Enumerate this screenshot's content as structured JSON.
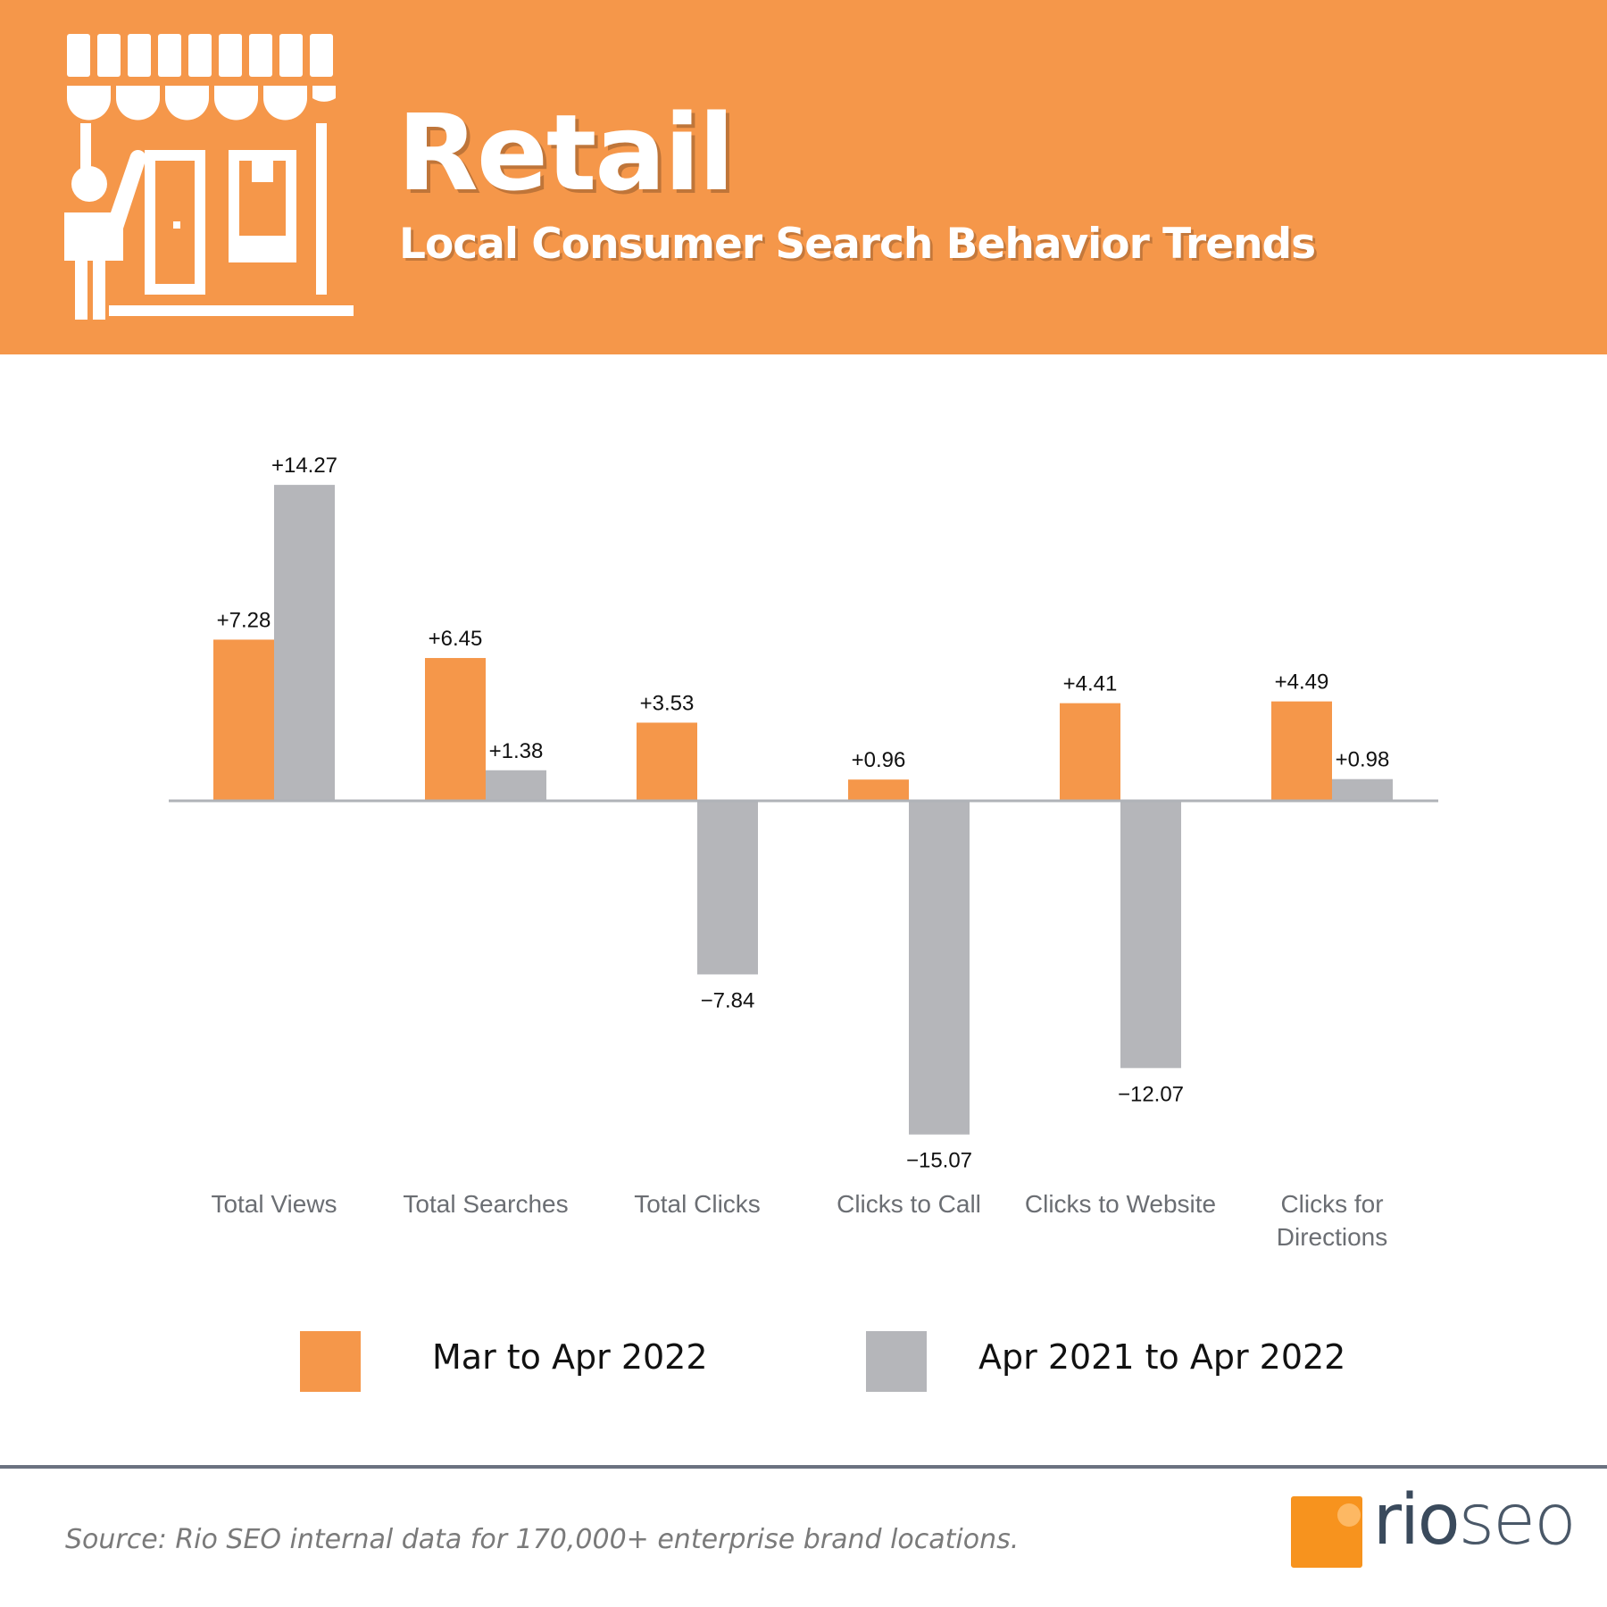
{
  "header": {
    "title": "Retail",
    "subtitle": "Local Consumer Search Behavior Trends",
    "icon": "storefront-icon"
  },
  "colors": {
    "header_bg": "#F5974A",
    "series_orange": "#F5974A",
    "series_gray": "#B5B6BA",
    "axis": "#B0B3B8",
    "category_text": "#6B6E73"
  },
  "chart_data": {
    "type": "bar",
    "categories": [
      "Total Views",
      "Total Searches",
      "Total Clicks",
      "Clicks to Call",
      "Clicks to Website",
      "Clicks for Directions"
    ],
    "category_lines": [
      [
        "Total Views"
      ],
      [
        "Total Searches"
      ],
      [
        "Total Clicks"
      ],
      [
        "Clicks to Call"
      ],
      [
        "Clicks to Website"
      ],
      [
        "Clicks for",
        "Directions"
      ]
    ],
    "series": [
      {
        "name": "Mar to Apr 2022",
        "values": [
          7.28,
          6.45,
          3.53,
          0.96,
          4.41,
          4.49
        ],
        "labels": [
          "+7.28",
          "+6.45",
          "+3.53",
          "+0.96",
          "+4.41",
          "+4.49"
        ]
      },
      {
        "name": "Apr 2021 to Apr 2022",
        "values": [
          14.27,
          1.38,
          -7.84,
          -15.07,
          -12.07,
          0.98
        ],
        "labels": [
          "+14.27",
          "+1.38",
          "−7.84",
          "−15.07",
          "−12.07",
          "+0.98"
        ]
      }
    ],
    "ylim": [
      -16,
      16
    ],
    "legend_position": "bottom"
  },
  "legend": {
    "items": [
      "Mar to Apr 2022",
      "Apr 2021 to Apr 2022"
    ]
  },
  "footer": {
    "source": "Source: Rio SEO internal data for 170,000+ enterprise brand locations.",
    "logo_text_rio": "rio",
    "logo_text_seo": "seo"
  }
}
